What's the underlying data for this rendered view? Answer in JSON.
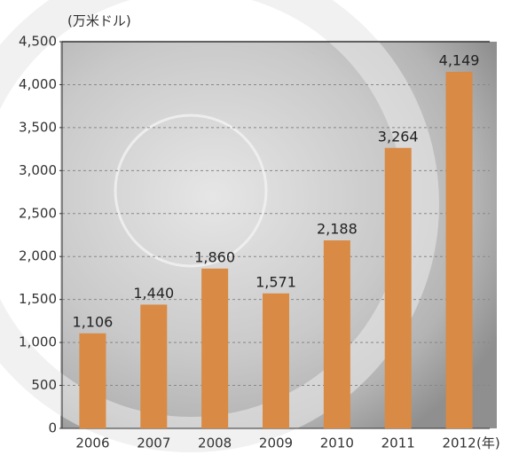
{
  "chart_data": {
    "type": "bar",
    "y_unit": "(万米ドル)",
    "x_unit": "(年)",
    "categories": [
      "2006",
      "2007",
      "2008",
      "2009",
      "2010",
      "2011",
      "2012"
    ],
    "values": [
      1106,
      1440,
      1860,
      1571,
      2188,
      3264,
      4149
    ],
    "value_labels": [
      "1,106",
      "1,440",
      "1,860",
      "1,571",
      "2,188",
      "3,264",
      "4,149"
    ],
    "color": "#d98a44",
    "ylim": [
      0,
      4500
    ],
    "yticks": [
      0,
      500,
      {
        "value": 1000,
        "label": "1,000"
      },
      {
        "value": 1500,
        "label": "1,500"
      },
      {
        "value": 2000,
        "label": "2,000"
      },
      {
        "value": 2500,
        "label": "2,500"
      },
      {
        "value": 3000,
        "label": "3,000"
      },
      {
        "value": 3500,
        "label": "3,500"
      },
      {
        "value": 4000,
        "label": "4,000"
      },
      {
        "value": 4500,
        "label": "4,500"
      }
    ],
    "grid": true
  }
}
